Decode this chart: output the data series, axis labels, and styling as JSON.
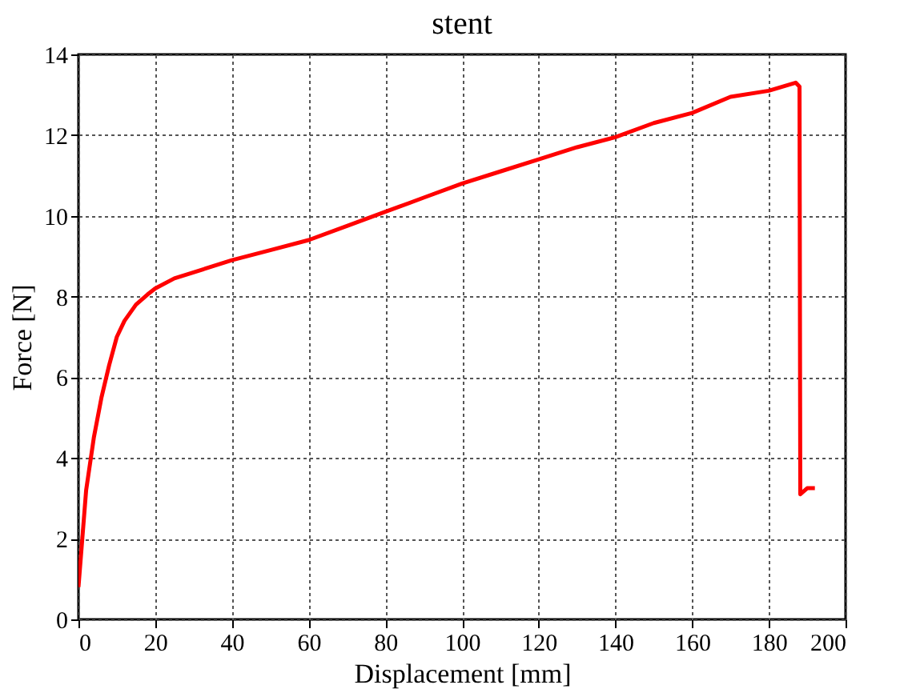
{
  "chart_data": {
    "type": "line",
    "title": "stent",
    "xlabel": "Displacement [mm]",
    "ylabel": "Force [N]",
    "series": [
      {
        "color": "#ff0000",
        "x": [
          0,
          1,
          2,
          4,
          6,
          8,
          10,
          12,
          15,
          18,
          20,
          25,
          30,
          40,
          50,
          60,
          70,
          80,
          90,
          100,
          110,
          120,
          130,
          140,
          150,
          160,
          170,
          180,
          187,
          188,
          188.2,
          190,
          192
        ],
        "values": [
          0.8,
          2,
          3.2,
          4.5,
          5.5,
          6.3,
          7.0,
          7.4,
          7.8,
          8.05,
          8.2,
          8.45,
          8.6,
          8.9,
          9.15,
          9.4,
          9.75,
          10.1,
          10.45,
          10.8,
          11.1,
          11.4,
          11.7,
          11.95,
          12.3,
          12.55,
          12.95,
          13.1,
          13.3,
          13.2,
          3.1,
          3.25,
          3.25
        ]
      }
    ],
    "xlim": [
      0,
      200
    ],
    "xticks": [
      0,
      20,
      40,
      60,
      80,
      100,
      120,
      140,
      160,
      180,
      200
    ],
    "ylim": [
      0,
      14
    ],
    "yticks": [
      0,
      2,
      4,
      6,
      8,
      10,
      12,
      14
    ],
    "grid": true,
    "legend": false,
    "marker": "none",
    "line_style": "solid"
  }
}
